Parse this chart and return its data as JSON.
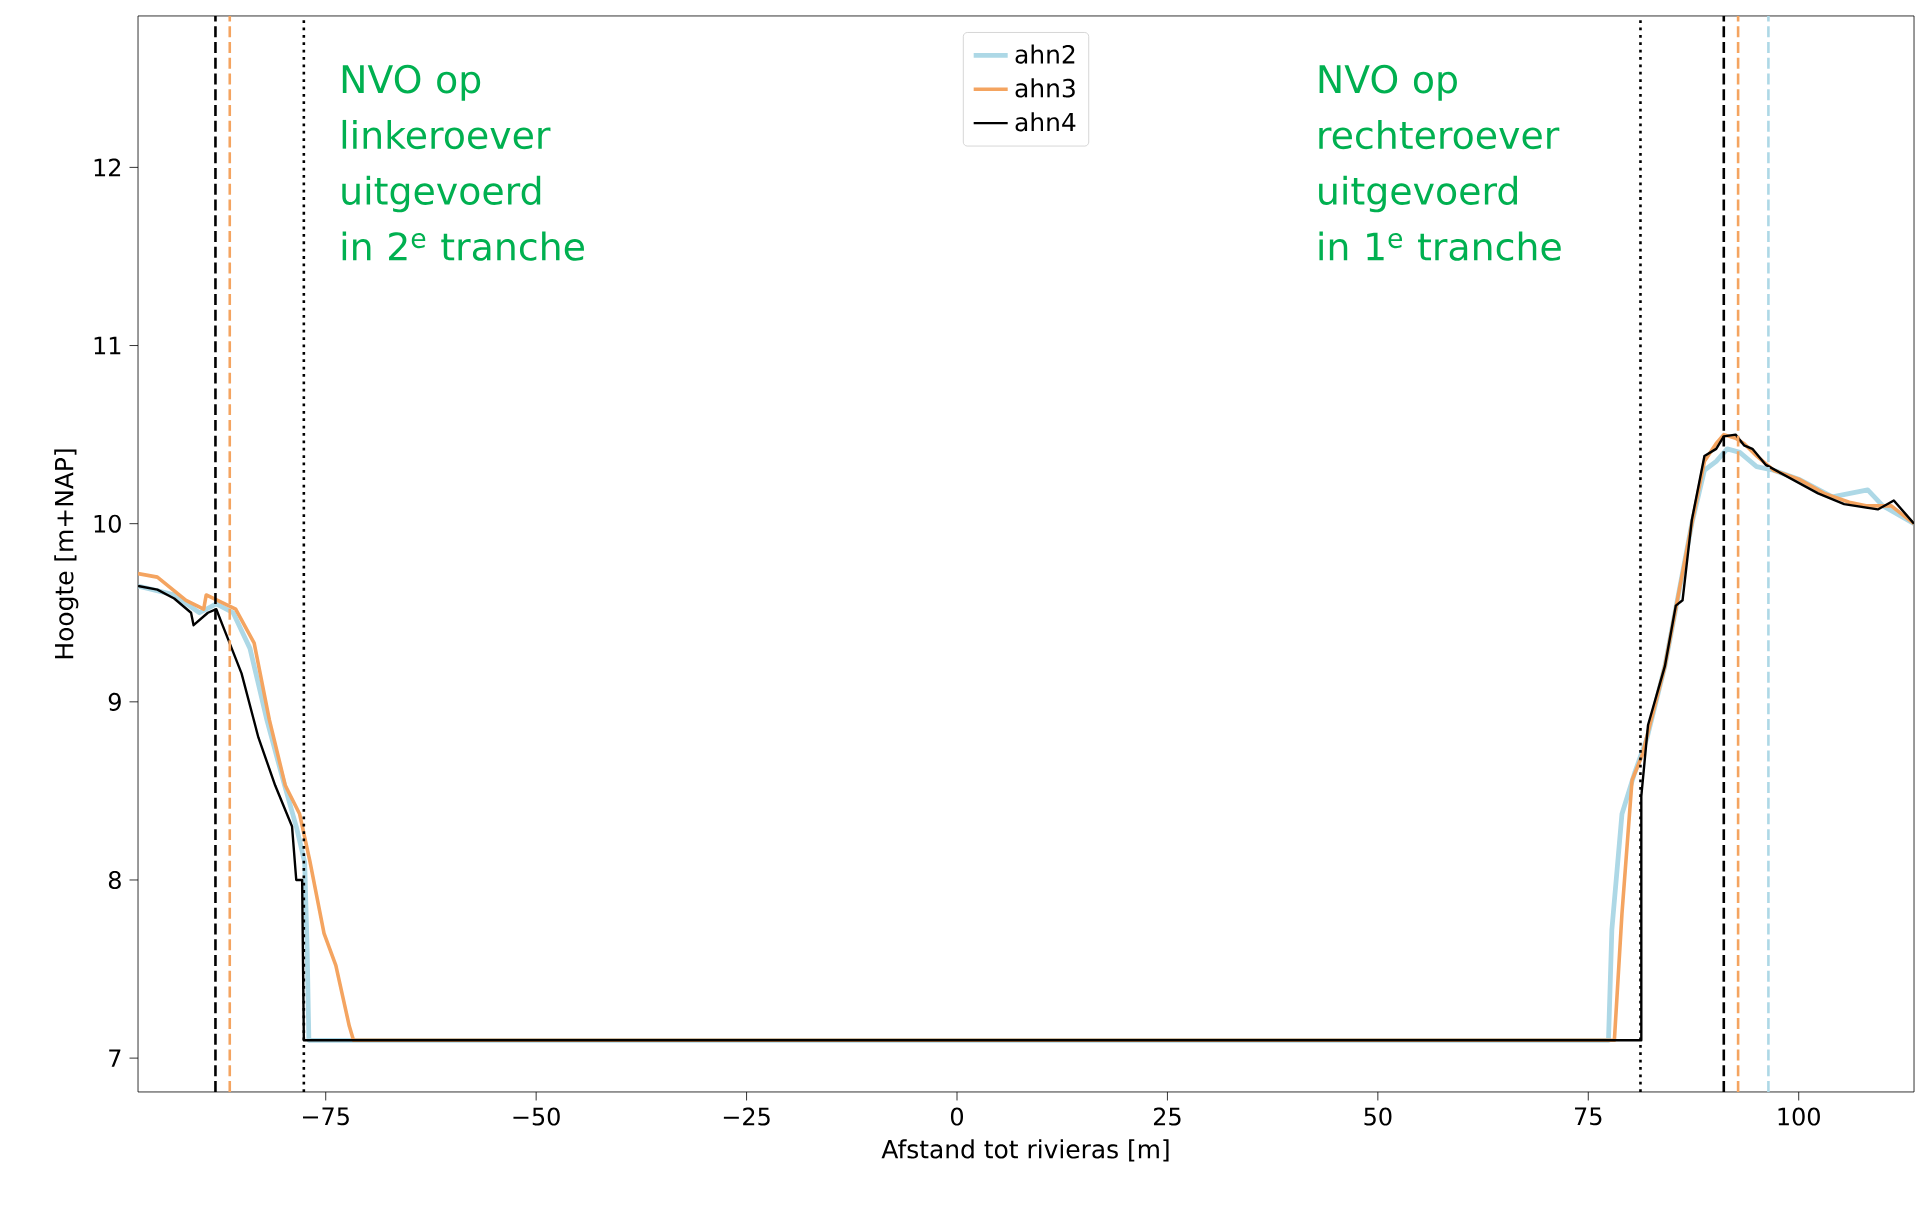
{
  "chart_data": {
    "type": "line",
    "xlabel": "Afstand tot rivieras [m]",
    "ylabel": "Hoogte [m+NAP]",
    "xlim": [
      -97.3,
      113.7
    ],
    "ylim": [
      6.81,
      12.85
    ],
    "xticks": [
      {
        "value": -75,
        "label": "−75"
      },
      {
        "value": -50,
        "label": "−50"
      },
      {
        "value": -25,
        "label": "−25"
      },
      0,
      25,
      50,
      75,
      100
    ],
    "yticks": [
      7,
      8,
      9,
      10,
      11,
      12
    ],
    "legend": "top",
    "series": [
      {
        "name": "ahn2",
        "color": "#add8e6",
        "x": [
          -97.3,
          -93,
          -90,
          -88,
          -86,
          -84,
          -82,
          -80,
          -78.5,
          -77.5,
          -77.2,
          -77,
          77.4,
          77.8,
          79.0,
          80.5,
          82,
          84.1,
          87.3,
          88.8,
          90.2,
          91.5,
          93,
          95,
          97,
          100,
          104,
          108.2,
          110,
          113.7
        ],
        "values": [
          9.65,
          9.6,
          9.5,
          9.55,
          9.5,
          9.3,
          8.9,
          8.55,
          8.3,
          8.1,
          7.6,
          7.1,
          7.1,
          7.72,
          8.37,
          8.6,
          8.8,
          9.2,
          10.0,
          10.3,
          10.35,
          10.42,
          10.4,
          10.32,
          10.3,
          10.25,
          10.15,
          10.19,
          10.1,
          10.0
        ]
      },
      {
        "name": "ahn3",
        "color": "#f4a460",
        "x": [
          -97.3,
          -95,
          -91.6,
          -89.5,
          -89.2,
          -85.7,
          -83.5,
          -81.7,
          -79.8,
          -78.1,
          -76.9,
          -75.2,
          -73.8,
          -72.2,
          -71.7,
          78.1,
          79.0,
          80.2,
          81.4,
          84.1,
          87.3,
          88.8,
          90.2,
          91.1,
          92.5,
          93.5,
          95,
          97,
          100,
          103,
          106,
          108,
          111,
          113.7
        ],
        "values": [
          9.72,
          9.7,
          9.57,
          9.52,
          9.6,
          9.52,
          9.33,
          8.9,
          8.53,
          8.37,
          8.11,
          7.7,
          7.52,
          7.18,
          7.1,
          7.1,
          7.81,
          8.56,
          8.7,
          9.2,
          10.0,
          10.35,
          10.45,
          10.5,
          10.48,
          10.45,
          10.38,
          10.3,
          10.25,
          10.17,
          10.12,
          10.1,
          10.1,
          10.0
        ]
      },
      {
        "name": "ahn4",
        "color": "#000000",
        "x": [
          -97.3,
          -95,
          -93,
          -91,
          -90.7,
          -89,
          -88,
          -87,
          -85,
          -83,
          -81,
          -79,
          -78.5,
          -77.8,
          -77.6,
          81.3,
          81.3,
          82.1,
          84.1,
          85.4,
          86.2,
          87.3,
          88.8,
          90.2,
          91.1,
          92.5,
          93.5,
          94.5,
          96.1,
          99.2,
          102.3,
          105.4,
          109.4,
          111.3,
          113.7
        ],
        "values": [
          9.65,
          9.63,
          9.58,
          9.5,
          9.43,
          9.5,
          9.52,
          9.4,
          9.16,
          8.8,
          8.53,
          8.3,
          8.0,
          8.0,
          7.1,
          7.1,
          8.47,
          8.87,
          9.2,
          9.54,
          9.57,
          10.02,
          10.38,
          10.42,
          10.49,
          10.5,
          10.44,
          10.42,
          10.33,
          10.25,
          10.17,
          10.11,
          10.08,
          10.13,
          10.0
        ]
      }
    ],
    "ref_lines": [
      {
        "axis": "x",
        "value": -88.1,
        "color": "#000000",
        "line_style": "dashed"
      },
      {
        "axis": "x",
        "value": -86.4,
        "color": "#f4a460",
        "line_style": "dashed"
      },
      {
        "axis": "x",
        "value": -77.6,
        "color": "#000000",
        "line_style": "dotted"
      },
      {
        "axis": "x",
        "value": 81.2,
        "color": "#000000",
        "line_style": "dotted"
      },
      {
        "axis": "x",
        "value": 91.1,
        "color": "#000000",
        "line_style": "dashed"
      },
      {
        "axis": "x",
        "value": 92.8,
        "color": "#f4a460",
        "line_style": "dashed"
      },
      {
        "axis": "x",
        "value": 96.4,
        "color": "#add8e6",
        "line_style": "dashed"
      }
    ],
    "annotations": [
      "NVO op linkeroever uitgevoerd in 2$^{e}$ tranche",
      "NVO op rechteroever uitgevoerd in 1$^{e}$ tranche"
    ]
  }
}
